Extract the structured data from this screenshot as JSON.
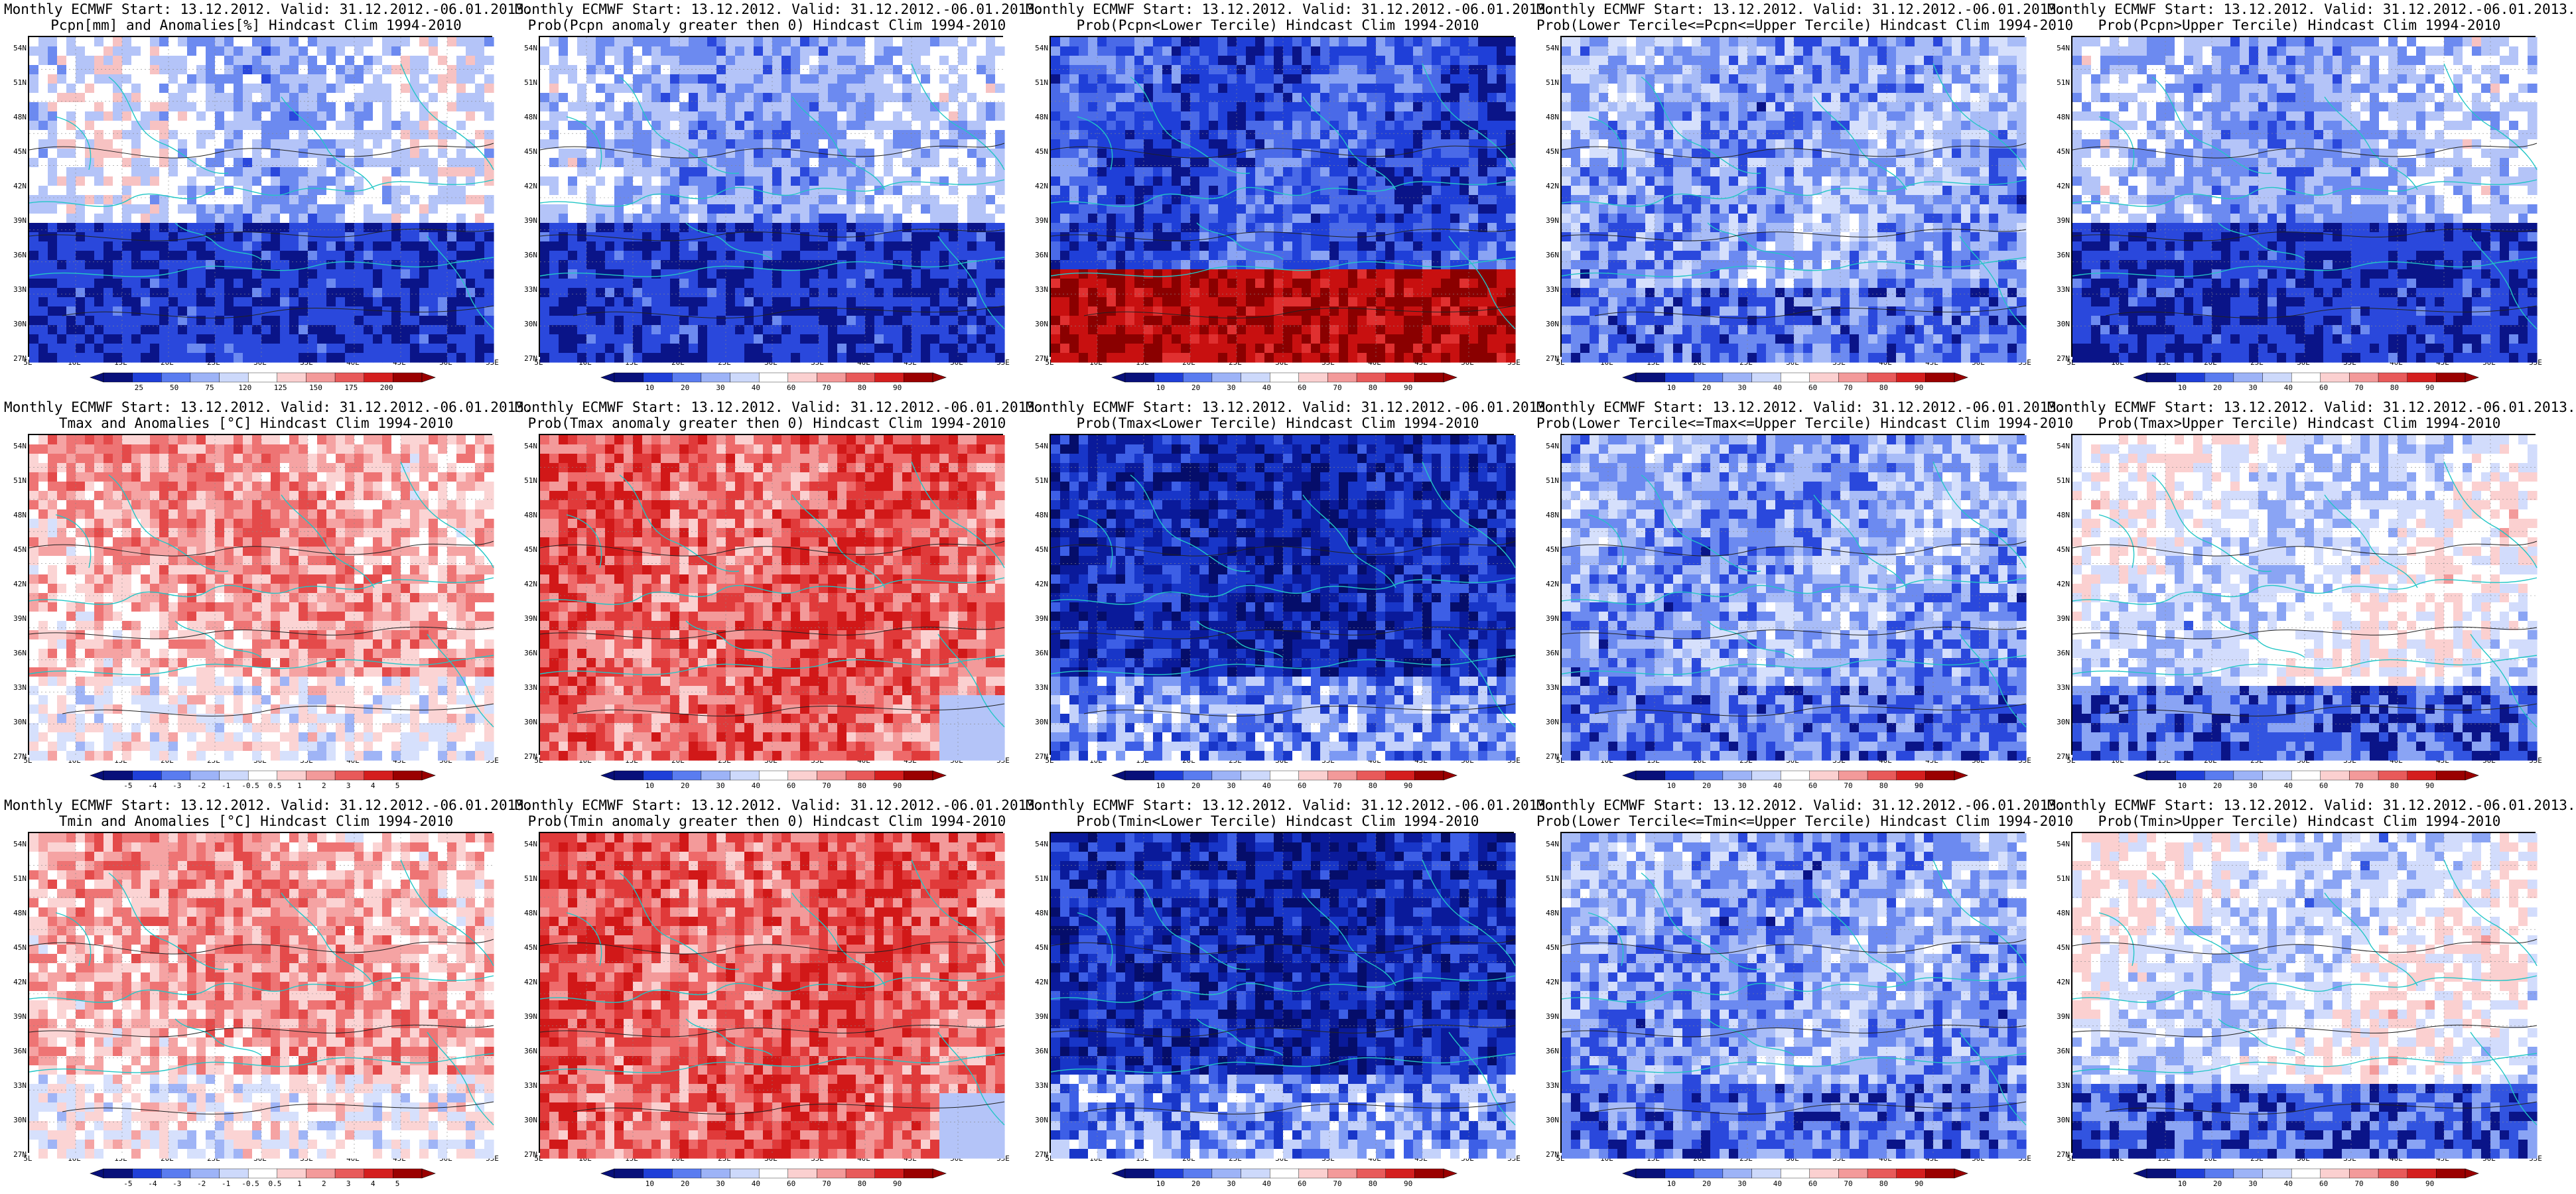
{
  "panels": [
    {
      "title1": "Monthly ECMWF Start: 13.12.2012. Valid: 31.12.2012.-06.01.2013.",
      "title2": "Pcpn[mm] and Anomalies[%] Hindcast Clim 1994-2010",
      "scheme": "pcpn-anom",
      "ticks": [
        "25",
        "50",
        "75",
        "120",
        "125",
        "150",
        "175",
        "200"
      ]
    },
    {
      "title1": "Monthly ECMWF Start: 13.12.2012. Valid: 31.12.2012.-06.01.2013.",
      "title2": "Prob(Pcpn anomaly greater then 0) Hindcast Clim 1994-2010",
      "scheme": "prob-up",
      "ticks": [
        "10",
        "20",
        "30",
        "40",
        "60",
        "70",
        "80",
        "90"
      ]
    },
    {
      "title1": "Monthly ECMWF Start: 13.12.2012. Valid: 31.12.2012.-06.01.2013.",
      "title2": "Prob(Pcpn<Lower Tercile) Hindcast Clim 1994-2010",
      "scheme": "prob-strong-blue-redsouth",
      "ticks": [
        "10",
        "20",
        "30",
        "40",
        "60",
        "70",
        "80",
        "90"
      ]
    },
    {
      "title1": "Monthly ECMWF Start: 13.12.2012. Valid: 31.12.2012.-06.01.2013.",
      "title2": "Prob(Lower Tercile<=Pcpn<=Upper Tercile) Hindcast Clim 1994-2010",
      "scheme": "prob-blue",
      "ticks": [
        "10",
        "20",
        "30",
        "40",
        "60",
        "70",
        "80",
        "90"
      ]
    },
    {
      "title1": "Monthly ECMWF Start: 13.12.2012. Valid: 31.12.2012.-06.01.2013.",
      "title2": "Prob(Pcpn>Upper Tercile) Hindcast Clim 1994-2010",
      "scheme": "prob-up",
      "ticks": [
        "10",
        "20",
        "30",
        "40",
        "60",
        "70",
        "80",
        "90"
      ]
    },
    {
      "title1": "Monthly ECMWF Start: 13.12.2012. Valid: 31.12.2012.-06.01.2013.",
      "title2": "Tmax and Anomalies [°C] Hindcast Clim 1994-2010",
      "scheme": "temp-warm",
      "ticks": [
        "-5",
        "-4",
        "-3",
        "-2",
        "-1",
        "-0.5",
        "0.5",
        "1",
        "2",
        "3",
        "4",
        "5"
      ]
    },
    {
      "title1": "Monthly ECMWF Start: 13.12.2012. Valid: 31.12.2012.-06.01.2013.",
      "title2": "Prob(Tmax anomaly greater then 0) Hindcast Clim 1994-2010",
      "scheme": "prob-red",
      "ticks": [
        "10",
        "20",
        "30",
        "40",
        "60",
        "70",
        "80",
        "90"
      ]
    },
    {
      "title1": "Monthly ECMWF Start: 13.12.2012. Valid: 31.12.2012.-06.01.2013.",
      "title2": "Prob(Tmax<Lower Tercile) Hindcast Clim 1994-2010",
      "scheme": "prob-deepblue",
      "ticks": [
        "10",
        "20",
        "30",
        "40",
        "60",
        "70",
        "80",
        "90"
      ]
    },
    {
      "title1": "Monthly ECMWF Start: 13.12.2012. Valid: 31.12.2012.-06.01.2013.",
      "title2": "Prob(Lower Tercile<=Tmax<=Upper Tercile) Hindcast Clim 1994-2010",
      "scheme": "prob-blue",
      "ticks": [
        "10",
        "20",
        "30",
        "40",
        "60",
        "70",
        "80",
        "90"
      ]
    },
    {
      "title1": "Monthly ECMWF Start: 13.12.2012. Valid: 31.12.2012.-06.01.2013.",
      "title2": "Prob(Tmax>Upper Tercile) Hindcast Clim 1994-2010",
      "scheme": "prob-mixed",
      "ticks": [
        "10",
        "20",
        "30",
        "40",
        "60",
        "70",
        "80",
        "90"
      ]
    },
    {
      "title1": "Monthly ECMWF Start: 13.12.2012. Valid: 31.12.2012.-06.01.2013.",
      "title2": "Tmin and Anomalies [°C] Hindcast Clim 1994-2010",
      "scheme": "temp-warm",
      "ticks": [
        "-5",
        "-4",
        "-3",
        "-2",
        "-1",
        "-0.5",
        "0.5",
        "1",
        "2",
        "3",
        "4",
        "5"
      ]
    },
    {
      "title1": "Monthly ECMWF Start: 13.12.2012. Valid: 31.12.2012.-06.01.2013.",
      "title2": "Prob(Tmin anomaly greater then 0) Hindcast Clim 1994-2010",
      "scheme": "prob-red",
      "ticks": [
        "10",
        "20",
        "30",
        "40",
        "60",
        "70",
        "80",
        "90"
      ]
    },
    {
      "title1": "Monthly ECMWF Start: 13.12.2012. Valid: 31.12.2012.-06.01.2013.",
      "title2": "Prob(Tmin<Lower Tercile) Hindcast Clim 1994-2010",
      "scheme": "prob-deepblue",
      "ticks": [
        "10",
        "20",
        "30",
        "40",
        "60",
        "70",
        "80",
        "90"
      ]
    },
    {
      "title1": "Monthly ECMWF Start: 13.12.2012. Valid: 31.12.2012.-06.01.2013.",
      "title2": "Prob(Lower Tercile<=Tmin<=Upper Tercile) Hindcast Clim 1994-2010",
      "scheme": "prob-blue",
      "ticks": [
        "10",
        "20",
        "30",
        "40",
        "60",
        "70",
        "80",
        "90"
      ]
    },
    {
      "title1": "Monthly ECMWF Start: 13.12.2012. Valid: 31.12.2012.-06.01.2013.",
      "title2": "Prob(Tmin>Upper Tercile) Hindcast Clim 1994-2010",
      "scheme": "prob-mixed",
      "ticks": [
        "10",
        "20",
        "30",
        "40",
        "60",
        "70",
        "80",
        "90"
      ]
    }
  ],
  "lat_labels": [
    "54N",
    "51N",
    "48N",
    "45N",
    "42N",
    "39N",
    "36N",
    "33N",
    "30N",
    "27N"
  ],
  "lon_labels": [
    "5E",
    "10E",
    "15E",
    "20E",
    "25E",
    "30E",
    "35E",
    "40E",
    "45E",
    "50E",
    "55E"
  ],
  "colors": {
    "coast": "#22c6c6",
    "contour": "#222222",
    "frame": "#000000"
  }
}
